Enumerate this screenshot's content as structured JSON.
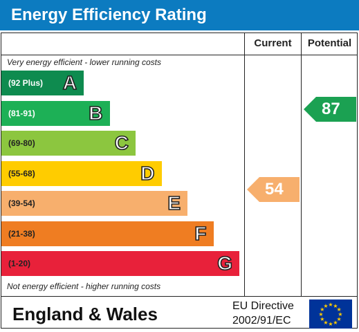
{
  "title": "Energy Efficiency Rating",
  "columns": {
    "current": "Current",
    "potential": "Potential"
  },
  "notes": {
    "top": "Very energy efficient - lower running costs",
    "bottom": "Not energy efficient - higher running costs"
  },
  "footer": {
    "region": "England & Wales",
    "directive_line1": "EU Directive",
    "directive_line2": "2002/91/EC"
  },
  "colors": {
    "header": "#0c7bc0",
    "current_arrow": "#f7af6d",
    "potential_arrow": "#1ba152"
  },
  "chart_data": {
    "type": "bar",
    "categories": [
      "A",
      "B",
      "C",
      "D",
      "E",
      "F",
      "G"
    ],
    "ranges": [
      "(92 Plus)",
      "(81-91)",
      "(69-80)",
      "(55-68)",
      "(39-54)",
      "(21-38)",
      "(1-20)"
    ],
    "colors": [
      "#0e8b4f",
      "#1db056",
      "#8cc63f",
      "#ffcc00",
      "#f7af6d",
      "#ef7d22",
      "#e8213a"
    ],
    "range_text_colors": [
      "#ffffff",
      "#ffffff",
      "#222222",
      "#222222",
      "#222222",
      "#222222",
      "#222222"
    ],
    "current": 54,
    "potential": 87
  }
}
